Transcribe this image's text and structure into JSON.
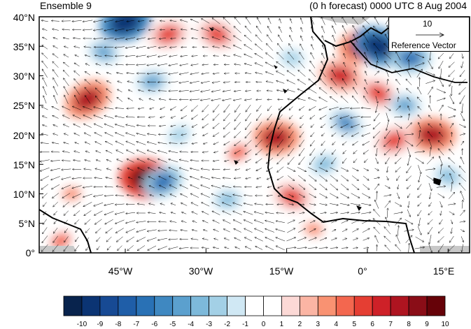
{
  "title_left": "Ensemble 9",
  "title_right": "(0 h forecast) 0000 UTC 8 Aug 2004",
  "lat_labels": [
    "40°N",
    "35°N",
    "30°N",
    "25°N",
    "20°N",
    "15°N",
    "10°N",
    "5°N",
    "0°"
  ],
  "lon_labels": [
    "45°W",
    "30°W",
    "15°W",
    "0°",
    "15°E"
  ],
  "reference_vector": {
    "value": "10",
    "label": "Reference Vector"
  },
  "colorbar": {
    "ticks": [
      "-10",
      "-9",
      "-8",
      "-7",
      "-6",
      "-5",
      "-4",
      "-3",
      "-2",
      "-1",
      "0",
      "1",
      "2",
      "3",
      "4",
      "5",
      "6",
      "7",
      "8",
      "9",
      "10"
    ],
    "colors": [
      "#08234d",
      "#0b3473",
      "#174a94",
      "#1f5ea8",
      "#2971b5",
      "#3f88c1",
      "#5ba0ce",
      "#7db9da",
      "#a3d0e6",
      "#d0e8f4",
      "#ffffff",
      "#ffffff",
      "#fcd9d6",
      "#fbb5a4",
      "#f99272",
      "#f3674f",
      "#e53e33",
      "#ce2128",
      "#ae1420",
      "#8a0d17",
      "#660208"
    ]
  },
  "map": {
    "domain": {
      "lon_range": [
        -61,
        19
      ],
      "lat_range": [
        0,
        40
      ]
    },
    "field": "wind anomaly with vectors",
    "anomalies": [
      {
        "lon": -52,
        "lat": 26,
        "value": 8
      },
      {
        "lon": -41,
        "lat": 12.5,
        "value": 10
      },
      {
        "lon": -37,
        "lat": 37,
        "value": 6
      },
      {
        "lon": -28,
        "lat": 37,
        "value": 6
      },
      {
        "lon": -17,
        "lat": 19.5,
        "value": 8
      },
      {
        "lon": -24,
        "lat": 17,
        "value": 5
      },
      {
        "lon": -5,
        "lat": 30,
        "value": 7
      },
      {
        "lon": -1,
        "lat": 35,
        "value": 8
      },
      {
        "lon": 2,
        "lat": 27,
        "value": 6
      },
      {
        "lon": 12,
        "lat": 20,
        "value": 8
      },
      {
        "lon": 5,
        "lat": 19,
        "value": 6
      },
      {
        "lon": -14,
        "lat": 9.5,
        "value": 6
      },
      {
        "lon": -55,
        "lat": 10,
        "value": 4
      },
      {
        "lon": -57,
        "lat": 2,
        "value": 5
      },
      {
        "lon": -10,
        "lat": 4,
        "value": 4
      },
      {
        "lon": -45,
        "lat": 39,
        "value": -9
      },
      {
        "lon": 2,
        "lat": 35,
        "value": -9
      },
      {
        "lon": 8,
        "lat": 33,
        "value": -6
      },
      {
        "lon": -38,
        "lat": 12,
        "value": -6
      },
      {
        "lon": -49,
        "lat": 34,
        "value": -4
      },
      {
        "lon": -40,
        "lat": 29,
        "value": -4
      },
      {
        "lon": -4,
        "lat": 22,
        "value": -5
      },
      {
        "lon": 7,
        "lat": 25,
        "value": -4
      },
      {
        "lon": -8,
        "lat": 15,
        "value": -3
      },
      {
        "lon": 15,
        "lat": 13,
        "value": -3
      },
      {
        "lon": -26,
        "lat": 9,
        "value": -3
      },
      {
        "lon": -35,
        "lat": 20,
        "value": -2
      },
      {
        "lon": -14,
        "lat": 33,
        "value": -2
      }
    ]
  }
}
